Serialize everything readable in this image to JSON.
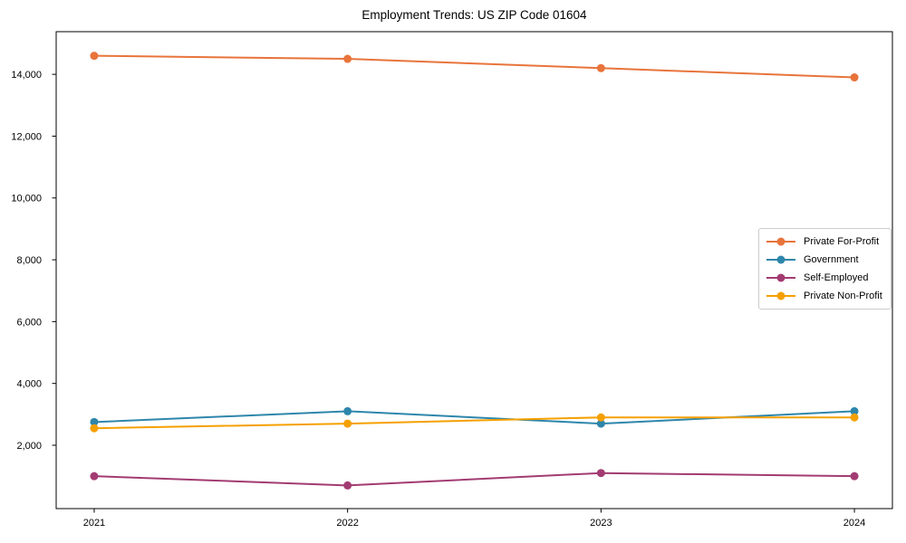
{
  "chart_data": {
    "type": "line",
    "title": "Employment Trends: US ZIP Code 01604",
    "xlabel": "",
    "ylabel": "",
    "grid": false,
    "legend_position": "center-right",
    "x": [
      2021,
      2022,
      2023,
      2024
    ],
    "x_tick_labels": [
      "2021",
      "2022",
      "2023",
      "2024"
    ],
    "series": [
      {
        "name": "Private For-Profit",
        "color": "#E8743B",
        "values": [
          14600,
          14500,
          14200,
          13900
        ]
      },
      {
        "name": "Government",
        "color": "#2E86AB",
        "values": [
          2750,
          3100,
          2700,
          3100
        ]
      },
      {
        "name": "Self-Employed",
        "color": "#A23B72",
        "values": [
          1000,
          700,
          1100,
          1000
        ]
      },
      {
        "name": "Private Non-Profit",
        "color": "#F5A001",
        "values": [
          2550,
          2700,
          2900,
          2900
        ]
      }
    ],
    "xlim": [
      2020.85,
      2024.15
    ],
    "ylim": [
      -50,
      15380
    ],
    "yticks": [
      2000,
      4000,
      6000,
      8000,
      10000,
      12000,
      14000
    ],
    "ytick_labels": [
      "2,000",
      "4,000",
      "6,000",
      "8,000",
      "10,000",
      "12,000",
      "14,000"
    ],
    "axis_color": "#000000",
    "background": "#ffffff",
    "marker": "circle",
    "line_width": 2
  }
}
